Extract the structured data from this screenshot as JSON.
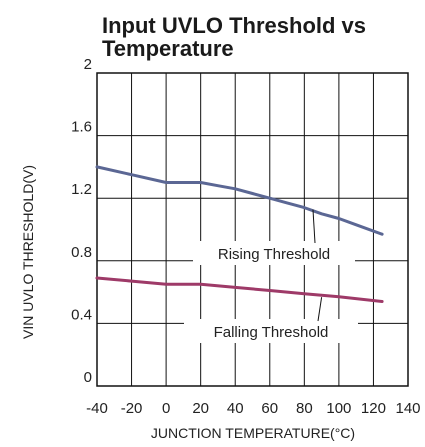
{
  "chart_data": {
    "type": "line",
    "title_line1": "Input UVLO Threshold vs",
    "title_line2": "Temperature",
    "xlabel": "JUNCTION TEMPERATURE(°C)",
    "ylabel": "VIN UVLO THRESHOLD(V)",
    "xlim": [
      -40,
      140
    ],
    "ylim": [
      0,
      2
    ],
    "x_ticks": [
      "-40",
      "-20",
      "0",
      "20",
      "40",
      "60",
      "80",
      "100",
      "120",
      "140"
    ],
    "y_ticks": [
      "0",
      "0.4",
      "0.8",
      "1.2",
      "1.6",
      "2"
    ],
    "grid": true,
    "series": [
      {
        "name": "Rising Threshold",
        "color": "#5b6794",
        "x": [
          -40,
          -20,
          0,
          10,
          20,
          30,
          40,
          50,
          60,
          70,
          80,
          90,
          100,
          110,
          125
        ],
        "y": [
          1.4,
          1.35,
          1.3,
          1.3,
          1.3,
          1.28,
          1.26,
          1.23,
          1.2,
          1.17,
          1.14,
          1.1,
          1.07,
          1.03,
          0.97
        ]
      },
      {
        "name": "Falling Threshold",
        "color": "#9e3a68",
        "x": [
          -40,
          -20,
          0,
          20,
          40,
          60,
          80,
          100,
          125
        ],
        "y": [
          0.69,
          0.67,
          0.65,
          0.65,
          0.63,
          0.61,
          0.59,
          0.57,
          0.54
        ]
      }
    ],
    "annotations": [
      {
        "text": "Rising Threshold",
        "series": 0,
        "target_x": 85,
        "target_y": 1.14
      },
      {
        "text": "Falling Threshold",
        "series": 1,
        "target_x": 90,
        "target_y": 0.58
      }
    ]
  }
}
